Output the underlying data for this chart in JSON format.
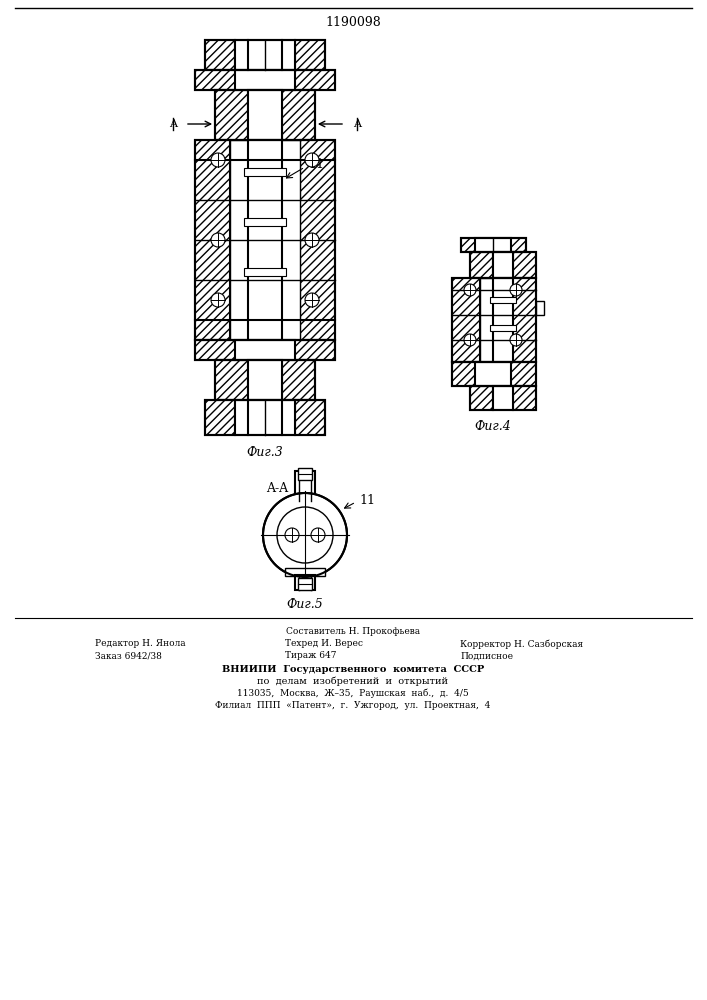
{
  "title": "1190098",
  "fig3_label": "Фиг.3",
  "fig4_label": "Фиг.4",
  "fig5_label": "Фиг.5",
  "section_label": "A-A",
  "part_label_11": "11",
  "footer_line1": "Составитель Н. Прокофьева",
  "footer_line2_left": "Редактор Н. Янола",
  "footer_line2_mid": "Техред И. Верес",
  "footer_line2_right": "Корректор Н. Сазборская",
  "footer_line3_left": "Заказ 6942/38",
  "footer_line3_mid": "Тираж 647",
  "footer_line3_right": "Подписное",
  "footer_org": "ВНИИПИ  Государственного  комитета  СССР",
  "footer_dept": "по  делам  изобретений  и  открытий",
  "footer_addr1": "113035,  Москва,  Ж–35,  Раушская  наб.,  д.  4/5",
  "footer_addr2": "Филиал  ППП  «Патент»,  г.  Ужгород,  ул.  Проектная,  4",
  "bg_color": "#ffffff",
  "line_color": "#000000"
}
